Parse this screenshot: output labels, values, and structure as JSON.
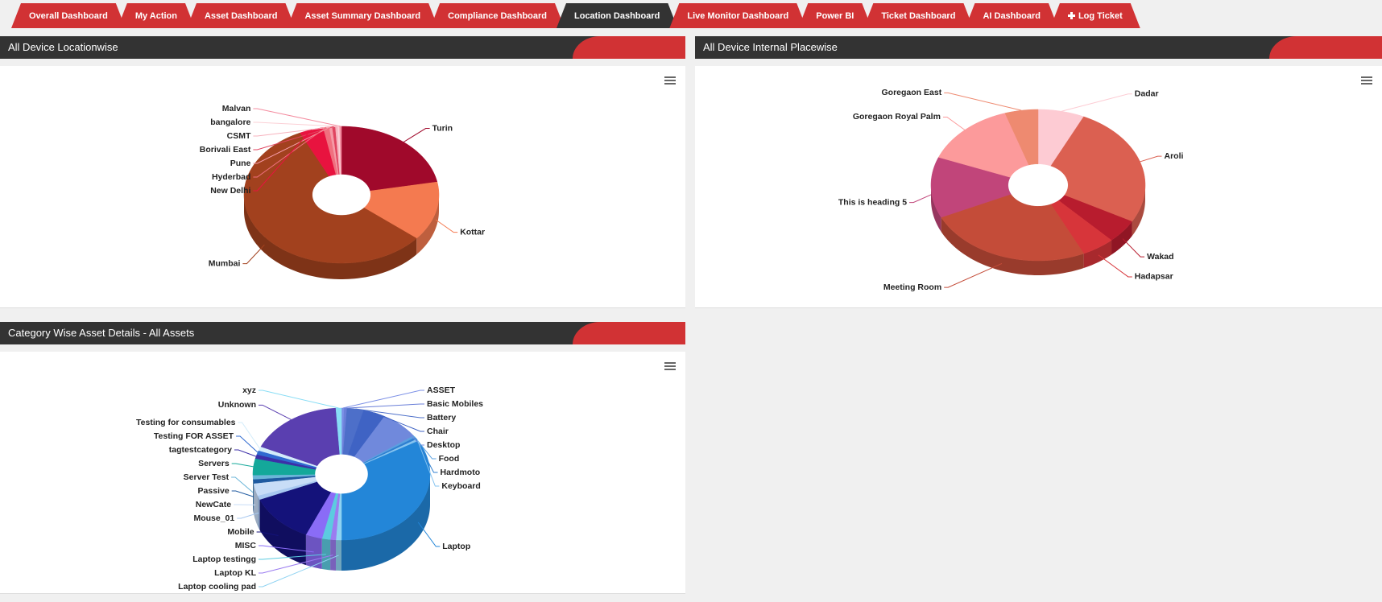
{
  "nav": {
    "tabs": [
      {
        "label": "Overall Dashboard"
      },
      {
        "label": "My Action"
      },
      {
        "label": "Asset Dashboard"
      },
      {
        "label": "Asset Summary Dashboard"
      },
      {
        "label": "Compliance Dashboard"
      },
      {
        "label": "Location Dashboard",
        "active": true
      },
      {
        "label": "Live Monitor Dashboard"
      },
      {
        "label": "Power BI"
      },
      {
        "label": "Ticket Dashboard"
      },
      {
        "label": "AI Dashboard"
      },
      {
        "label": "Log Ticket",
        "icon": "plus"
      }
    ]
  },
  "chart_data": [
    {
      "type": "pie",
      "title": "All Device Locationwise",
      "categories": [
        "Turin",
        "Kottar",
        "Mumbai",
        "New Delhi",
        "Hyderbad",
        "Pune",
        "Borivali East",
        "CSMT",
        "bangalore",
        "Malvan"
      ],
      "values": [
        22,
        14,
        57,
        4,
        1,
        0.5,
        0.5,
        0.4,
        0.3,
        0.3
      ],
      "colors": [
        "#a0092b",
        "#f47a50",
        "#a2411e",
        "#e8133f",
        "#f0707f",
        "#f59aa6",
        "#e04560",
        "#f7b3be",
        "#fbd0d6",
        "#f48da0"
      ]
    },
    {
      "type": "pie",
      "title": "All Device Internal Placewise",
      "categories": [
        "Dadar",
        "Aroli",
        "Wakad",
        "Hadapsar",
        "Meeting Room",
        "This is heading 5",
        "Goregaon Royal Palm",
        "Goregaon East"
      ],
      "values": [
        7,
        26,
        5,
        5,
        25,
        13,
        14,
        5
      ],
      "colors": [
        "#fdcbd3",
        "#db6051",
        "#b81c2e",
        "#d7353a",
        "#c44c39",
        "#c1457a",
        "#fc9a9b",
        "#ee8a70"
      ]
    },
    {
      "type": "pie",
      "title": "Category Wise Asset Details - All Assets",
      "categories": [
        "ASSET",
        "Basic Mobiles",
        "Battery",
        "Chair",
        "Desktop",
        "Food",
        "Hardmoto",
        "Keyboard",
        "Laptop",
        "Laptop cooling pad",
        "Laptop KL",
        "Laptop testingg",
        "MISC",
        "Mobile",
        "Mouse_01",
        "NewCate",
        "Passive",
        "Server Test",
        "Servers",
        "tagtestcategory",
        "Testing FOR ASSET",
        "Testing for consumables",
        "Unknown",
        "xyz"
      ],
      "values": [
        0.5,
        0.5,
        3,
        4,
        7,
        0.5,
        0.5,
        0.5,
        33,
        1,
        1,
        1.5,
        3,
        12,
        1,
        3,
        1,
        1,
        4,
        1,
        1,
        1,
        17,
        1
      ],
      "colors": [
        "#7b8fe6",
        "#6a7fd8",
        "#4d6fc9",
        "#3f63c4",
        "#7089dc",
        "#5aa0e0",
        "#2f7fd0",
        "#86c4f0",
        "#2386d8",
        "#8fd3f2",
        "#9b7cf0",
        "#5ccbe0",
        "#8a6cf7",
        "#14127a",
        "#a8c8f0",
        "#c8ddf7",
        "#1f5aa0",
        "#6bb5d8",
        "#14a89a",
        "#3c2fa8",
        "#2f6ad0",
        "#d3ecfa",
        "#5a3fb0",
        "#88ddf5"
      ]
    }
  ]
}
